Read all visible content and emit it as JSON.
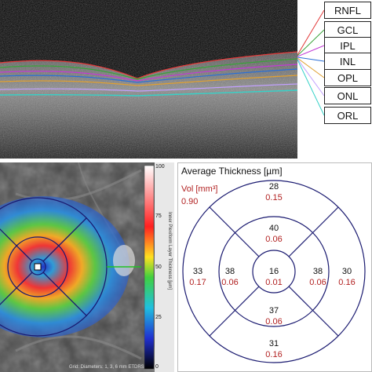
{
  "layers": [
    "RNFL",
    "GCL",
    "IPL",
    "INL",
    "OPL",
    "ONL",
    "ORL"
  ],
  "layer_colors": [
    "#e23a3a",
    "#3aa33a",
    "#c23ad6",
    "#2a6fd6",
    "#e0a030",
    "#c2a0ff",
    "#36d2c8"
  ],
  "colorbar": {
    "ticks": [
      "100",
      "75",
      "50",
      "25",
      "0"
    ],
    "label": "Inner Plexiform Layer Thickness [µm]"
  },
  "scan_caption": "Grid: Diameters: 1, 3, 6 mm ETDRS",
  "thickness": {
    "title": "Average Thickness [µm]",
    "vol_title": "Vol [mm³]",
    "total_vol": "0.90",
    "cells": [
      {
        "id": "center",
        "value": "16",
        "vol": "0.01"
      },
      {
        "id": "inner-superior",
        "value": "40",
        "vol": "0.06"
      },
      {
        "id": "inner-inferior",
        "value": "37",
        "vol": "0.06"
      },
      {
        "id": "inner-temporal",
        "value": "38",
        "vol": "0.06"
      },
      {
        "id": "inner-nasal",
        "value": "38",
        "vol": "0.06"
      },
      {
        "id": "outer-superior",
        "value": "28",
        "vol": "0.15"
      },
      {
        "id": "outer-inferior",
        "value": "31",
        "vol": "0.16"
      },
      {
        "id": "outer-temporal",
        "value": "33",
        "vol": "0.17"
      },
      {
        "id": "outer-nasal",
        "value": "30",
        "vol": "0.16"
      }
    ]
  }
}
